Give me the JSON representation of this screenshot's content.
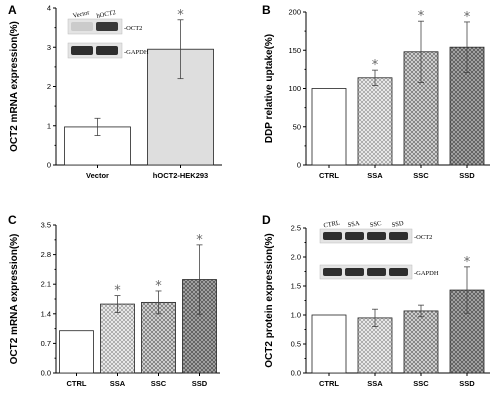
{
  "panels": [
    {
      "label": "A",
      "ylabel": "OCT2 mRNA expression(%)",
      "yticks": [
        "0",
        "1",
        "2",
        "3",
        "4"
      ],
      "categories": [
        "Vector",
        "hOCT2-HEK293"
      ],
      "blot": {
        "lanes": [
          "Vector",
          "hOCT2"
        ],
        "bands": [
          "-OCT2",
          "-GAPDH"
        ]
      }
    },
    {
      "label": "B",
      "ylabel": "DDP relative uptake(%)",
      "yticks": [
        "0",
        "50",
        "100",
        "150",
        "200"
      ],
      "categories": [
        "CTRL",
        "SSA",
        "SSC",
        "SSD"
      ]
    },
    {
      "label": "C",
      "ylabel": "OCT2 mRNA expression(%)",
      "yticks": [
        "0.0",
        "0.7",
        "1.4",
        "2.1",
        "2.8",
        "3.5"
      ],
      "categories": [
        "CTRL",
        "SSA",
        "SSC",
        "SSD"
      ]
    },
    {
      "label": "D",
      "ylabel": "OCT2 protein expression(%)",
      "yticks": [
        "0.0",
        "0.5",
        "1.0",
        "1.5",
        "2.0",
        "2.5"
      ],
      "categories": [
        "CTRL",
        "SSA",
        "SSC",
        "SSD"
      ],
      "blot": {
        "lanes": [
          "CTRL",
          "SSA",
          "SSC",
          "SSD"
        ],
        "bands": [
          "-OCT2",
          "-GAPDH"
        ]
      }
    }
  ],
  "chart_data": [
    {
      "type": "bar",
      "categories": [
        "Vector",
        "hOCT2-HEK293"
      ],
      "values": [
        0.97,
        2.95
      ],
      "errors": [
        0.22,
        0.75
      ],
      "significant": [
        false,
        true
      ],
      "ylabel": "OCT2 mRNA expression(%)",
      "ylim": [
        0,
        4
      ],
      "fills": [
        "white",
        "light-gray"
      ]
    },
    {
      "type": "bar",
      "categories": [
        "CTRL",
        "SSA",
        "SSC",
        "SSD"
      ],
      "values": [
        100,
        114,
        148,
        154
      ],
      "errors": [
        0,
        10,
        40,
        33
      ],
      "significant": [
        false,
        true,
        true,
        true
      ],
      "ylabel": "DDP relative uptake(%)",
      "ylim": [
        0,
        200
      ],
      "fills": [
        "white",
        "crosshatch-light",
        "crosshatch-medium",
        "crosshatch-dark"
      ]
    },
    {
      "type": "bar",
      "categories": [
        "CTRL",
        "SSA",
        "SSC",
        "SSD"
      ],
      "values": [
        1.0,
        1.63,
        1.67,
        2.21
      ],
      "errors": [
        0,
        0.2,
        0.27,
        0.82
      ],
      "significant": [
        false,
        true,
        true,
        true
      ],
      "ylabel": "OCT2 mRNA expression(%)",
      "ylim": [
        0,
        3.5
      ],
      "fills": [
        "white",
        "crosshatch-light",
        "crosshatch-medium",
        "crosshatch-dark"
      ]
    },
    {
      "type": "bar",
      "categories": [
        "CTRL",
        "SSA",
        "SSC",
        "SSD"
      ],
      "values": [
        1.0,
        0.95,
        1.07,
        1.43
      ],
      "errors": [
        0,
        0.15,
        0.1,
        0.4
      ],
      "significant": [
        false,
        false,
        false,
        true
      ],
      "ylabel": "OCT2 protein expression(%)",
      "ylim": [
        0,
        2.5
      ],
      "fills": [
        "white",
        "crosshatch-light",
        "crosshatch-medium",
        "crosshatch-dark"
      ]
    }
  ]
}
